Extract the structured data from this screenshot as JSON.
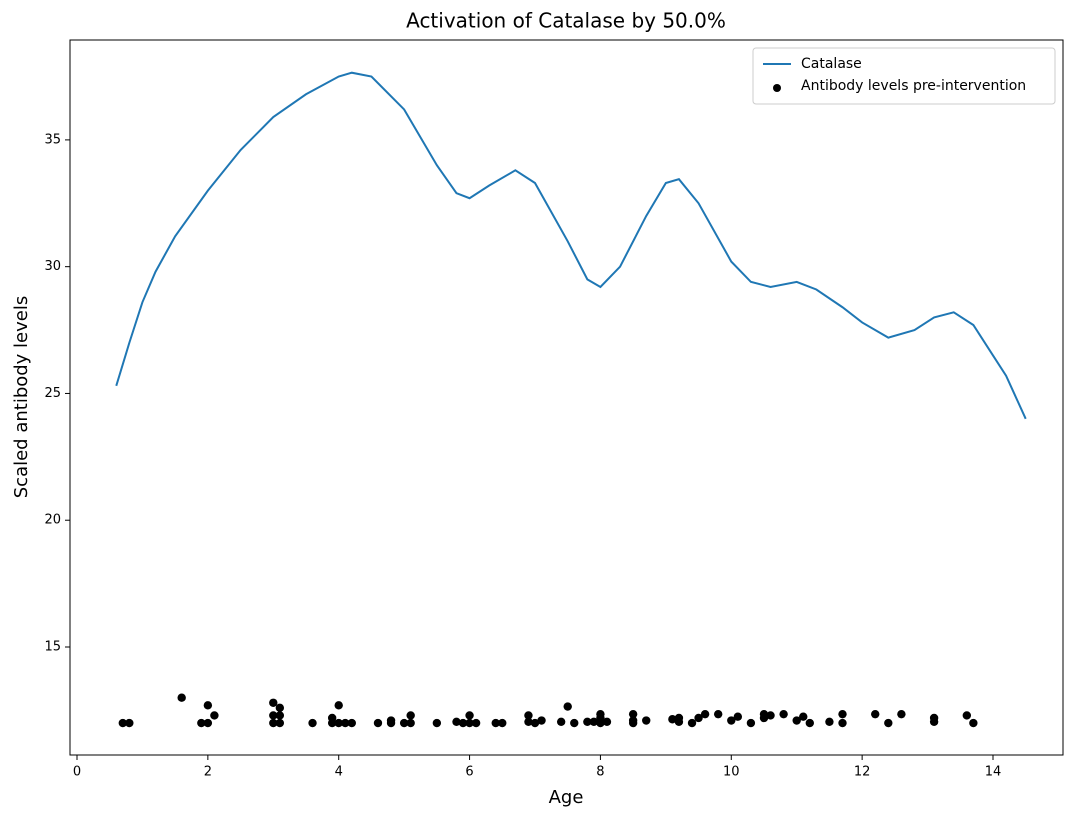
{
  "chart_data": {
    "type": "line",
    "title": "Activation of Catalase by 50.0%",
    "xlabel": "Age",
    "ylabel": "Scaled antibody levels",
    "xlim": [
      -0.107,
      15.07
    ],
    "ylim": [
      10.74,
      38.94
    ],
    "xticks": [
      0,
      2,
      4,
      6,
      8,
      10,
      12,
      14
    ],
    "yticks": [
      15,
      20,
      25,
      30,
      35
    ],
    "legend": "upper right",
    "series": [
      {
        "name": "Catalase",
        "type": "line",
        "color": "#1f77b4",
        "x": [
          0.6,
          0.8,
          1.0,
          1.2,
          1.5,
          2.0,
          2.5,
          3.0,
          3.5,
          4.0,
          4.2,
          4.5,
          5.0,
          5.5,
          5.8,
          6.0,
          6.3,
          6.7,
          7.0,
          7.5,
          7.8,
          8.0,
          8.3,
          8.7,
          9.0,
          9.2,
          9.5,
          10.0,
          10.3,
          10.6,
          11.0,
          11.3,
          11.7,
          12.0,
          12.4,
          12.8,
          13.1,
          13.4,
          13.7,
          14.0,
          14.2,
          14.5
        ],
        "values": [
          25.3,
          27.0,
          28.6,
          29.8,
          31.2,
          33.0,
          34.6,
          35.9,
          36.8,
          37.5,
          37.65,
          37.5,
          36.2,
          34.0,
          32.9,
          32.7,
          33.2,
          33.8,
          33.3,
          31.0,
          29.5,
          29.2,
          30.0,
          32.0,
          33.3,
          33.45,
          32.5,
          30.2,
          29.4,
          29.2,
          29.4,
          29.1,
          28.4,
          27.8,
          27.2,
          27.5,
          28.0,
          28.2,
          27.7,
          26.5,
          25.7,
          24.0
        ]
      },
      {
        "name": "Antibody levels pre-intervention",
        "type": "scatter",
        "color": "#000000",
        "x": [
          0.7,
          0.8,
          1.6,
          1.9,
          2.0,
          2.0,
          2.1,
          3.0,
          3.0,
          3.0,
          3.1,
          3.1,
          3.1,
          3.6,
          3.9,
          3.9,
          4.0,
          4.0,
          4.1,
          4.2,
          4.6,
          4.8,
          4.8,
          5.0,
          5.1,
          5.1,
          5.5,
          5.8,
          5.9,
          6.0,
          6.0,
          6.1,
          6.4,
          6.5,
          6.9,
          6.9,
          7.0,
          7.1,
          7.4,
          7.5,
          7.6,
          7.8,
          7.9,
          8.0,
          8.0,
          8.0,
          8.1,
          8.5,
          8.5,
          8.5,
          8.7,
          9.1,
          9.2,
          9.2,
          9.4,
          9.5,
          9.6,
          9.8,
          10.0,
          10.1,
          10.3,
          10.5,
          10.5,
          10.6,
          10.8,
          11.0,
          11.1,
          11.2,
          11.5,
          11.7,
          11.7,
          12.2,
          12.4,
          12.6,
          13.1,
          13.1,
          13.6,
          13.7
        ],
        "values": [
          12,
          12,
          13,
          12,
          12,
          12.7,
          12.3,
          12.8,
          12.3,
          12,
          12.6,
          12.3,
          12,
          12,
          12.2,
          12,
          12.7,
          12,
          12,
          12,
          12,
          12.1,
          12,
          12,
          12.3,
          12,
          12,
          12.05,
          12,
          12.3,
          12,
          12,
          12,
          12,
          12.3,
          12.05,
          12,
          12.1,
          12.05,
          12.65,
          12,
          12.05,
          12.05,
          12.35,
          12.2,
          12,
          12.05,
          12.35,
          12.1,
          12,
          12.1,
          12.15,
          12.2,
          12.05,
          12,
          12.2,
          12.35,
          12.35,
          12.1,
          12.25,
          12,
          12.35,
          12.2,
          12.3,
          12.35,
          12.1,
          12.25,
          12,
          12.05,
          12.35,
          12,
          12.35,
          12,
          12.35,
          12.2,
          12.05,
          12.3,
          12
        ]
      }
    ]
  }
}
